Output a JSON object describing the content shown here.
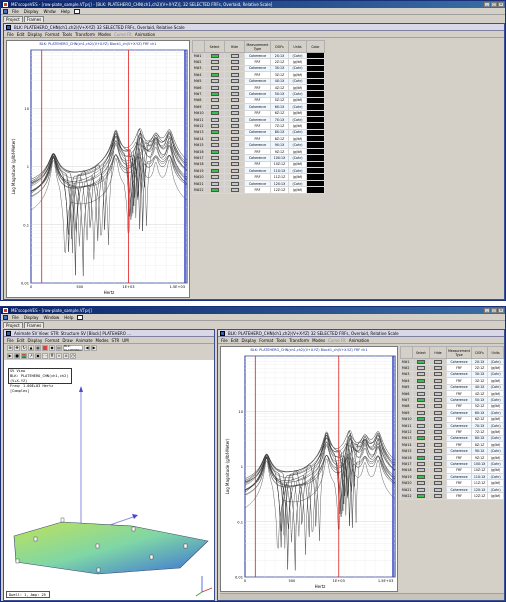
{
  "app1": {
    "title": "ME'scopeVES - [row-plate_sample.VTprj] - [BLK: PLATEHERO_CHN(ch1,ch2)(V+X-YZ)], 32 SELECTED FRFs, Overlaid, Relative Scale]",
    "menus": [
      "File",
      "Display",
      "Wndw",
      "Help"
    ],
    "tabs": [
      "Project",
      "Frames"
    ]
  },
  "app2": {
    "title": "ME'scopeVES - [row-plate_sample.VTprj]",
    "menus": [
      "File",
      "Display",
      "Window",
      "Help"
    ],
    "tabs": [
      "Project",
      "Frames"
    ]
  },
  "inner_blk": {
    "title": "BLK: PLATEHERO_CHN(ch1,ch2)(V+X-YZ) 32 SELECTED FRFs, Overlaid, Relative Scale",
    "menus": [
      "File",
      "Edit",
      "Display",
      "Format",
      "Tools",
      "Transform",
      "Modes",
      "Curve Fit",
      "Animation"
    ],
    "dim_menus": [
      "Curve Fit"
    ],
    "plot_header": "BLK: PLATEHERO_CHN(ch1,ch2)(V+X-YZ) Block1_ch(V+X-YZ) FRF ch1"
  },
  "inner_sv": {
    "title": "Animate SV View: STR: Structure SV [Block] PLATEHERO ...",
    "menus": [
      "File",
      "Edit",
      "Display",
      "Format",
      "Draw",
      "Animate",
      "Modes",
      "STR",
      "UM"
    ],
    "colorlist_label": "BLK: PLATEHERO",
    "infobox": [
      "SV View",
      "BLK: PLATEHERO_CHN(ch1,ch2)(V+X-YZ)",
      "Freq: 1.00E+03 Hertz [Complex]"
    ],
    "status": "Dwell: 1, Amp: 25"
  },
  "plot": {
    "ylabel": "Log Magnitude (g/lbf-Meter)",
    "xlabel": "Hertz",
    "yticks": [
      "10",
      "1",
      "0.1",
      "0.01"
    ],
    "xticks": [
      "0",
      "500",
      "1E+03",
      "1.5E+03"
    ]
  },
  "table": {
    "headers": [
      "Select",
      "Hide",
      "Measurement Type",
      "DOFs",
      "Units",
      "Color"
    ],
    "rows": [
      {
        "id": "M#1",
        "sel": true,
        "type": "Coherence",
        "dofs": "2X:1X",
        "units": "(Cohr)",
        "color": "#000000"
      },
      {
        "id": "M#2",
        "sel": false,
        "type": "FRF",
        "dofs": "2Z:1Z",
        "units": "(g/lbf)",
        "color": "#000000"
      },
      {
        "id": "M#3",
        "sel": false,
        "type": "Coherence",
        "dofs": "3X:1X",
        "units": "(Cohr)",
        "color": "#000000"
      },
      {
        "id": "M#4",
        "sel": true,
        "type": "FRF",
        "dofs": "3Z:1Z",
        "units": "(g/lbf)",
        "color": "#000000"
      },
      {
        "id": "M#5",
        "sel": false,
        "type": "Coherence",
        "dofs": "4X:1X",
        "units": "(Cohr)",
        "color": "#000000"
      },
      {
        "id": "M#6",
        "sel": false,
        "type": "FRF",
        "dofs": "4Z:1Z",
        "units": "(g/lbf)",
        "color": "#000000"
      },
      {
        "id": "M#7",
        "sel": true,
        "type": "Coherence",
        "dofs": "5X:1X",
        "units": "(Cohr)",
        "color": "#000000"
      },
      {
        "id": "M#8",
        "sel": false,
        "type": "FRF",
        "dofs": "5Z:1Z",
        "units": "(g/lbf)",
        "color": "#000000"
      },
      {
        "id": "M#9",
        "sel": false,
        "type": "Coherence",
        "dofs": "6X:1X",
        "units": "(Cohr)",
        "color": "#000000"
      },
      {
        "id": "M#10",
        "sel": true,
        "type": "FRF",
        "dofs": "6Z:1Z",
        "units": "(g/lbf)",
        "color": "#000000"
      },
      {
        "id": "M#11",
        "sel": false,
        "type": "Coherence",
        "dofs": "7X:1X",
        "units": "(Cohr)",
        "color": "#000000"
      },
      {
        "id": "M#12",
        "sel": false,
        "type": "FRF",
        "dofs": "7Z:1Z",
        "units": "(g/lbf)",
        "color": "#000000"
      },
      {
        "id": "M#13",
        "sel": true,
        "type": "Coherence",
        "dofs": "8X:1X",
        "units": "(Cohr)",
        "color": "#000000"
      },
      {
        "id": "M#14",
        "sel": false,
        "type": "FRF",
        "dofs": "8Z:1Z",
        "units": "(g/lbf)",
        "color": "#000000"
      },
      {
        "id": "M#15",
        "sel": false,
        "type": "Coherence",
        "dofs": "9X:1X",
        "units": "(Cohr)",
        "color": "#000000"
      },
      {
        "id": "M#16",
        "sel": true,
        "type": "FRF",
        "dofs": "9Z:1Z",
        "units": "(g/lbf)",
        "color": "#000000"
      },
      {
        "id": "M#17",
        "sel": false,
        "type": "Coherence",
        "dofs": "10X:1X",
        "units": "(Cohr)",
        "color": "#000000"
      },
      {
        "id": "M#18",
        "sel": false,
        "type": "FRF",
        "dofs": "10Z:1Z",
        "units": "(g/lbf)",
        "color": "#000000"
      },
      {
        "id": "M#19",
        "sel": true,
        "type": "Coherence",
        "dofs": "11X:1X",
        "units": "(Cohr)",
        "color": "#000000"
      },
      {
        "id": "M#20",
        "sel": false,
        "type": "FRF",
        "dofs": "11Z:1Z",
        "units": "(g/lbf)",
        "color": "#000000"
      },
      {
        "id": "M#21",
        "sel": false,
        "type": "Coherence",
        "dofs": "12X:1X",
        "units": "(Cohr)",
        "color": "#000000"
      },
      {
        "id": "M#22",
        "sel": true,
        "type": "FRF",
        "dofs": "12Z:1Z",
        "units": "(g/lbf)",
        "color": "#000000"
      }
    ]
  },
  "colors": {
    "cursor": "#e02020",
    "border": "#1b2f9b",
    "selected": "#34c24a"
  }
}
